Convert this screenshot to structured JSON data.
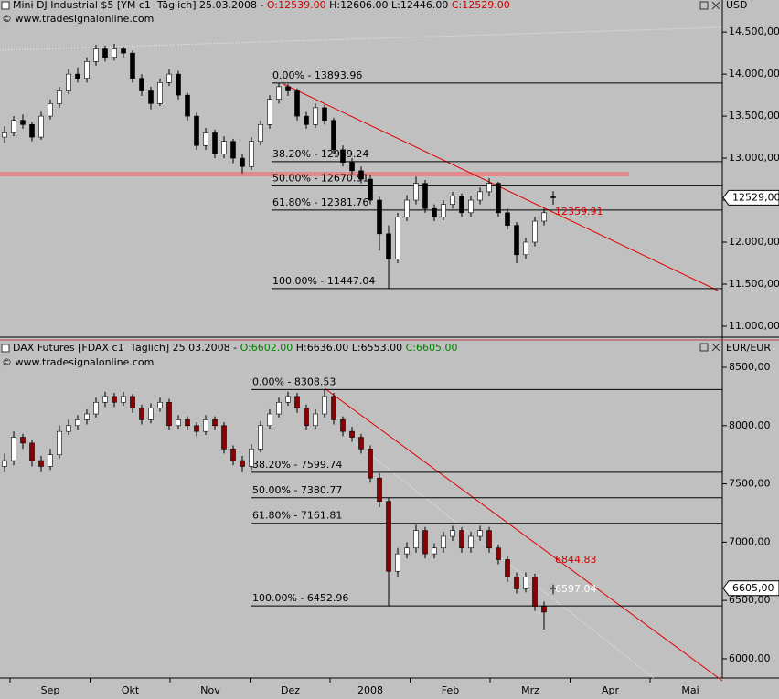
{
  "chart_data": [
    {
      "type": "candlestick",
      "header": [
        "Mini DJ Industrial $5 [YM c1  Täglich] 25.03.2008 - ",
        "O:12539.00",
        " H:12606.00 L:12446.00 ",
        "C:12529.00"
      ],
      "header_colors": [
        "#000000",
        "#d00000",
        "#000000",
        "#d00000"
      ],
      "source": "© www.tradesignalonline.com",
      "currency": "USD",
      "last_label": "12529,00",
      "ylim": [
        10880,
        14730
      ],
      "yticks": [
        {
          "value": 11000,
          "label": "11.000,00"
        },
        {
          "value": 11500,
          "label": "11.500,00"
        },
        {
          "value": 12000,
          "label": "12.000,00"
        },
        {
          "value": 12500,
          "label": "12.500,00"
        },
        {
          "value": 13000,
          "label": "13.000,00"
        },
        {
          "value": 13500,
          "label": "13.500,00"
        },
        {
          "value": 14000,
          "label": "14.000,00"
        },
        {
          "value": 14500,
          "label": "14.500,00"
        }
      ],
      "up_color": "#ffffff",
      "down_color": "#000000",
      "fib": [
        {
          "value": 13893.96,
          "label": "0.00% - 13893.96"
        },
        {
          "value": 12959.24,
          "label": "38.20% - 12959.24"
        },
        {
          "value": 12670.51,
          "label": "50.00% - 12670.51"
        },
        {
          "value": 12381.76,
          "label": "61.80% - 12381.76"
        },
        {
          "value": 11447.04,
          "label": "100.00% - 11447.04"
        }
      ],
      "annotations": [
        {
          "value": 12359.91,
          "label": "12359.91",
          "color": "#d00000"
        }
      ],
      "candles": [
        [
          13250,
          13380,
          13180,
          13300
        ],
        [
          13300,
          13500,
          13260,
          13450
        ],
        [
          13450,
          13520,
          13350,
          13400
        ],
        [
          13400,
          13430,
          13200,
          13250
        ],
        [
          13250,
          13550,
          13220,
          13500
        ],
        [
          13500,
          13700,
          13460,
          13650
        ],
        [
          13650,
          13850,
          13600,
          13800
        ],
        [
          13800,
          14060,
          13760,
          14000
        ],
        [
          14000,
          14080,
          13900,
          13950
        ],
        [
          13950,
          14200,
          13900,
          14150
        ],
        [
          14150,
          14350,
          14100,
          14300
        ],
        [
          14300,
          14340,
          14150,
          14200
        ],
        [
          14200,
          14360,
          14160,
          14300
        ],
        [
          14300,
          14330,
          14200,
          14250
        ],
        [
          14250,
          14280,
          13900,
          13950
        ],
        [
          13950,
          14000,
          13740,
          13800
        ],
        [
          13800,
          13850,
          13580,
          13650
        ],
        [
          13650,
          13950,
          13620,
          13900
        ],
        [
          13900,
          14060,
          13860,
          14000
        ],
        [
          14000,
          14040,
          13700,
          13750
        ],
        [
          13750,
          13780,
          13450,
          13500
        ],
        [
          13500,
          13540,
          13100,
          13150
        ],
        [
          13150,
          13360,
          13100,
          13300
        ],
        [
          13300,
          13340,
          13000,
          13050
        ],
        [
          13050,
          13260,
          13000,
          13200
        ],
        [
          13200,
          13230,
          12940,
          13000
        ],
        [
          13000,
          13050,
          12820,
          12900
        ],
        [
          12900,
          13250,
          12860,
          13200
        ],
        [
          13200,
          13450,
          13150,
          13400
        ],
        [
          13400,
          13750,
          13350,
          13700
        ],
        [
          13700,
          13894,
          13650,
          13850
        ],
        [
          13850,
          13880,
          13740,
          13800
        ],
        [
          13800,
          13830,
          13450,
          13500
        ],
        [
          13500,
          13550,
          13350,
          13400
        ],
        [
          13400,
          13650,
          13360,
          13600
        ],
        [
          13600,
          13640,
          13400,
          13450
        ],
        [
          13450,
          13480,
          13050,
          13100
        ],
        [
          13100,
          13150,
          12900,
          12950
        ],
        [
          12950,
          13000,
          12800,
          12850
        ],
        [
          12850,
          12900,
          12700,
          12750
        ],
        [
          12750,
          12800,
          12450,
          12500
        ],
        [
          12500,
          12540,
          11900,
          12100
        ],
        [
          12100,
          12200,
          11447,
          11800
        ],
        [
          11800,
          12350,
          11750,
          12300
        ],
        [
          12300,
          12560,
          12250,
          12500
        ],
        [
          12500,
          12780,
          12450,
          12700
        ],
        [
          12700,
          12740,
          12350,
          12400
        ],
        [
          12400,
          12450,
          12250,
          12300
        ],
        [
          12300,
          12500,
          12260,
          12450
        ],
        [
          12450,
          12600,
          12400,
          12550
        ],
        [
          12550,
          12580,
          12300,
          12350
        ],
        [
          12350,
          12550,
          12300,
          12500
        ],
        [
          12500,
          12650,
          12450,
          12600
        ],
        [
          12600,
          12760,
          12550,
          12700
        ],
        [
          12700,
          12720,
          12300,
          12350
        ],
        [
          12350,
          12400,
          12150,
          12200
        ],
        [
          12200,
          12240,
          11750,
          11850
        ],
        [
          11850,
          12050,
          11800,
          12000
        ],
        [
          12000,
          12300,
          11950,
          12250
        ],
        [
          12250,
          12400,
          12200,
          12350
        ],
        [
          12539,
          12606,
          12446,
          12529
        ]
      ]
    },
    {
      "type": "candlestick",
      "header": [
        "DAX Futures [FDAX c1  Täglich] 25.03.2008 - ",
        "O:6602.00",
        " H:6636.00 L:6553.00 ",
        "C:6605.00"
      ],
      "header_colors": [
        "#000000",
        "#008000",
        "#000000",
        "#008000"
      ],
      "source": "© www.tradesignalonline.com",
      "currency": "EUR/EUR",
      "last_label": "6605,00",
      "ylim": [
        5835,
        8594
      ],
      "yticks": [
        {
          "value": 6000,
          "label": "6000,00"
        },
        {
          "value": 6500,
          "label": "6500,00"
        },
        {
          "value": 7000,
          "label": "7000,00"
        },
        {
          "value": 7500,
          "label": "7500,00"
        },
        {
          "value": 8000,
          "label": "8000,00"
        },
        {
          "value": 8500,
          "label": "8500,00"
        }
      ],
      "up_color": "#ffffff",
      "down_color": "#8b0000",
      "fib": [
        {
          "value": 8308.53,
          "label": "0.00% - 8308.53"
        },
        {
          "value": 7599.74,
          "label": "38.20% - 7599.74"
        },
        {
          "value": 7380.77,
          "label": "50.00% - 7380.77"
        },
        {
          "value": 7161.81,
          "label": "61.80% - 7161.81"
        },
        {
          "value": 6452.96,
          "label": "100.00% - 6452.96"
        }
      ],
      "annotations": [
        {
          "value": 6844.83,
          "label": "6844.83",
          "color": "#d00000"
        },
        {
          "value": 6597.04,
          "label": "6597.04",
          "color": "#ffffff"
        }
      ],
      "x_labels": [
        "Sep",
        "Okt",
        "Nov",
        "Dez",
        "2008",
        "Feb",
        "Mrz",
        "Apr",
        "Mai"
      ],
      "candles": [
        [
          7650,
          7760,
          7600,
          7700
        ],
        [
          7700,
          7950,
          7660,
          7900
        ],
        [
          7900,
          7930,
          7800,
          7850
        ],
        [
          7850,
          7880,
          7650,
          7700
        ],
        [
          7700,
          7740,
          7600,
          7650
        ],
        [
          7650,
          7800,
          7620,
          7750
        ],
        [
          7750,
          8000,
          7720,
          7950
        ],
        [
          7950,
          8050,
          7920,
          8000
        ],
        [
          8000,
          8090,
          7960,
          8050
        ],
        [
          8050,
          8140,
          8010,
          8100
        ],
        [
          8100,
          8240,
          8070,
          8200
        ],
        [
          8200,
          8290,
          8160,
          8250
        ],
        [
          8250,
          8280,
          8160,
          8200
        ],
        [
          8200,
          8290,
          8170,
          8250
        ],
        [
          8250,
          8270,
          8110,
          8150
        ],
        [
          8150,
          8180,
          8010,
          8050
        ],
        [
          8050,
          8190,
          8020,
          8150
        ],
        [
          8150,
          8240,
          8120,
          8200
        ],
        [
          8200,
          8230,
          7960,
          8000
        ],
        [
          8000,
          8090,
          7970,
          8050
        ],
        [
          8050,
          8080,
          7960,
          8000
        ],
        [
          8000,
          8030,
          7910,
          7950
        ],
        [
          7950,
          8090,
          7920,
          8050
        ],
        [
          8050,
          8080,
          7960,
          8000
        ],
        [
          8000,
          8030,
          7760,
          7800
        ],
        [
          7800,
          7830,
          7660,
          7700
        ],
        [
          7700,
          7740,
          7600,
          7650
        ],
        [
          7650,
          7840,
          7620,
          7800
        ],
        [
          7800,
          8040,
          7770,
          8000
        ],
        [
          8000,
          8140,
          7970,
          8100
        ],
        [
          8100,
          8240,
          8070,
          8200
        ],
        [
          8200,
          8290,
          8170,
          8250
        ],
        [
          8250,
          8280,
          8110,
          8150
        ],
        [
          8150,
          8180,
          7960,
          8000
        ],
        [
          8000,
          8140,
          7970,
          8100
        ],
        [
          8100,
          8308.53,
          8070,
          8250
        ],
        [
          8250,
          8280,
          8010,
          8050
        ],
        [
          8050,
          8080,
          7910,
          7950
        ],
        [
          7950,
          7990,
          7860,
          7900
        ],
        [
          7900,
          7930,
          7760,
          7800
        ],
        [
          7800,
          7830,
          7510,
          7550
        ],
        [
          7550,
          7590,
          7300,
          7350
        ],
        [
          7350,
          7380,
          6452.96,
          6750
        ],
        [
          6750,
          6950,
          6700,
          6900
        ],
        [
          6900,
          7000,
          6860,
          6950
        ],
        [
          6950,
          7150,
          6910,
          7100
        ],
        [
          7100,
          7130,
          6860,
          6900
        ],
        [
          6900,
          6990,
          6860,
          6950
        ],
        [
          6950,
          7090,
          6910,
          7050
        ],
        [
          7050,
          7140,
          7010,
          7100
        ],
        [
          7100,
          7130,
          6910,
          6950
        ],
        [
          6950,
          7090,
          6910,
          7050
        ],
        [
          7050,
          7140,
          7010,
          7100
        ],
        [
          7100,
          7130,
          6910,
          6950
        ],
        [
          6950,
          6980,
          6810,
          6850
        ],
        [
          6850,
          6880,
          6660,
          6700
        ],
        [
          6700,
          6740,
          6560,
          6600
        ],
        [
          6600,
          6740,
          6570,
          6700
        ],
        [
          6700,
          6730,
          6410,
          6450
        ],
        [
          6450,
          6490,
          6250,
          6400
        ],
        [
          6602,
          6636,
          6553,
          6605
        ]
      ]
    }
  ]
}
